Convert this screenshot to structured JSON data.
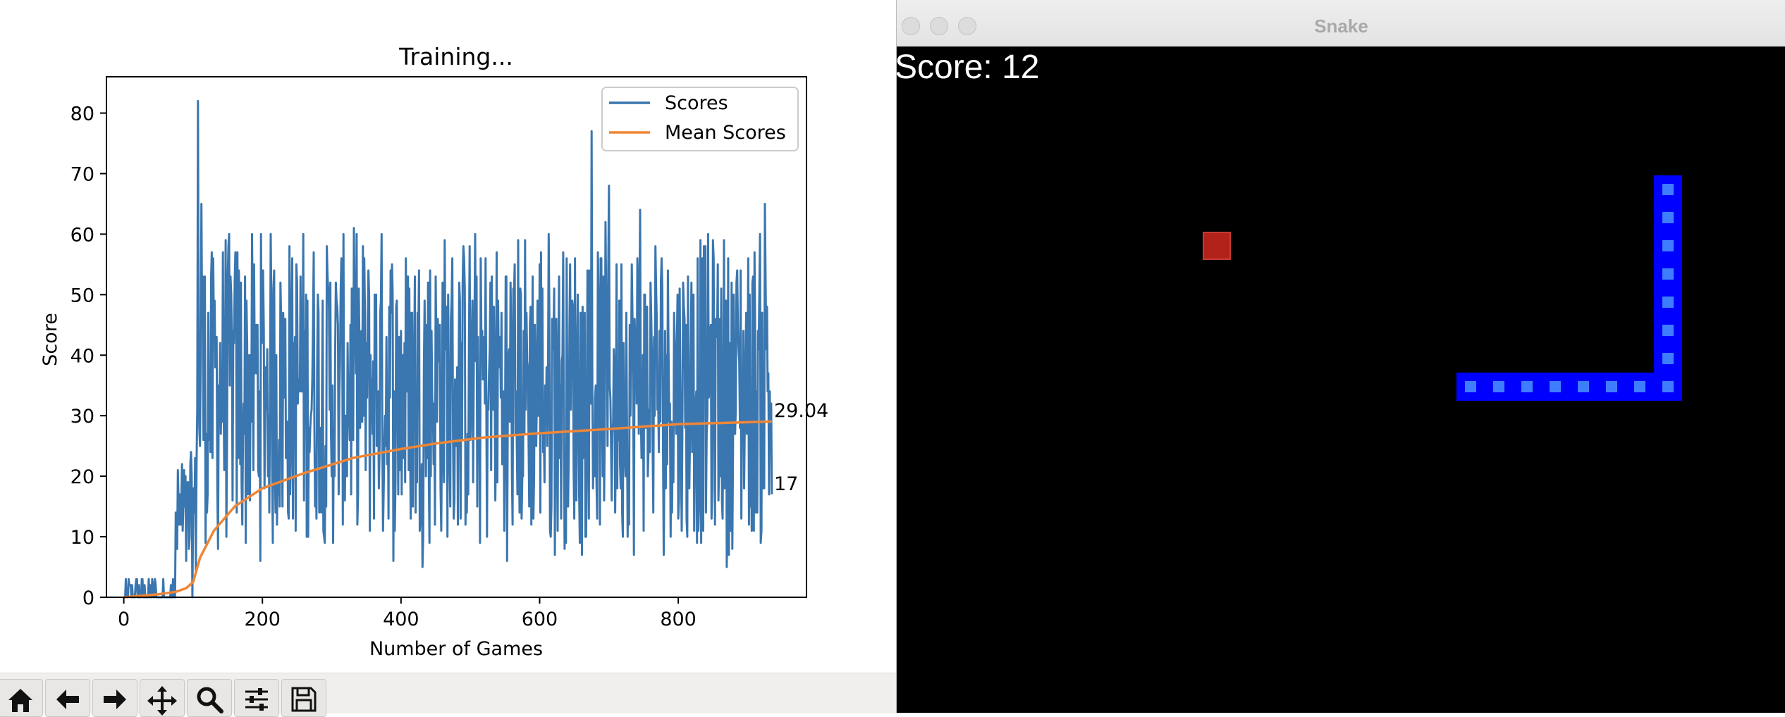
{
  "plot_window": {
    "chart_data": {
      "type": "line",
      "title": "Training...",
      "xlabel": "Number of Games",
      "ylabel": "Score",
      "xlim": [
        -25,
        985
      ],
      "ylim": [
        0,
        86
      ],
      "xticks": [
        0,
        200,
        400,
        600,
        800
      ],
      "yticks": [
        0,
        10,
        20,
        30,
        40,
        50,
        60,
        70,
        80
      ],
      "grid": false,
      "legend_position": "top-right",
      "series": [
        {
          "name": "Scores",
          "color": "#3a76af",
          "final_label": "17"
        },
        {
          "name": "Mean Scores",
          "color": "#ef8636",
          "final_label": "29.04",
          "x": [
            0,
            50,
            75,
            90,
            100,
            110,
            130,
            160,
            200,
            260,
            330,
            400,
            450,
            520,
            600,
            700,
            800,
            935
          ],
          "y": [
            0,
            0.5,
            0.9,
            1.5,
            2.5,
            6.5,
            11,
            15,
            18,
            20.5,
            23,
            24.5,
            25.4,
            26.4,
            27.1,
            27.8,
            28.6,
            29.04
          ]
        }
      ],
      "score_profile": {
        "segments": [
          {
            "x_start": 0,
            "x_end": 75,
            "low": 0,
            "high": 3
          },
          {
            "x_start": 75,
            "x_end": 105,
            "low": 0,
            "high": 24
          },
          {
            "x_start": 105,
            "x_end": 935,
            "low": 8,
            "high": 59
          }
        ],
        "peaks": [
          {
            "x": 107,
            "y": 82
          },
          {
            "x": 112,
            "y": 65
          },
          {
            "x": 675,
            "y": 77
          },
          {
            "x": 700,
            "y": 68
          },
          {
            "x": 745,
            "y": 64
          },
          {
            "x": 925,
            "y": 65
          },
          {
            "x": 553,
            "y": 6
          },
          {
            "x": 870,
            "y": 5
          },
          {
            "x": 935,
            "y": 17
          }
        ]
      }
    },
    "toolbar": {
      "buttons": [
        {
          "name": "home-icon"
        },
        {
          "name": "arrow-left-icon"
        },
        {
          "name": "arrow-right-icon"
        },
        {
          "name": "move-icon"
        },
        {
          "name": "zoom-icon"
        },
        {
          "name": "sliders-icon"
        },
        {
          "name": "save-icon"
        }
      ]
    }
  },
  "snake_window": {
    "title": "Snake",
    "score_text": "Score: 12",
    "colors": {
      "snake": "#0000ff",
      "snake_inner": "#3f7dff",
      "food": "#b3221a",
      "background": "#000000"
    },
    "grid_cell": 20,
    "food": {
      "col": 11,
      "row": 8
    },
    "snake": [
      {
        "col": 27,
        "row": 6
      },
      {
        "col": 27,
        "row": 7
      },
      {
        "col": 27,
        "row": 8
      },
      {
        "col": 27,
        "row": 9
      },
      {
        "col": 27,
        "row": 10
      },
      {
        "col": 27,
        "row": 11
      },
      {
        "col": 27,
        "row": 12
      },
      {
        "col": 27,
        "row": 13
      },
      {
        "col": 26,
        "row": 13
      },
      {
        "col": 25,
        "row": 13
      },
      {
        "col": 24,
        "row": 13
      },
      {
        "col": 23,
        "row": 13
      },
      {
        "col": 22,
        "row": 13
      },
      {
        "col": 21,
        "row": 13
      },
      {
        "col": 20,
        "row": 13
      }
    ]
  }
}
